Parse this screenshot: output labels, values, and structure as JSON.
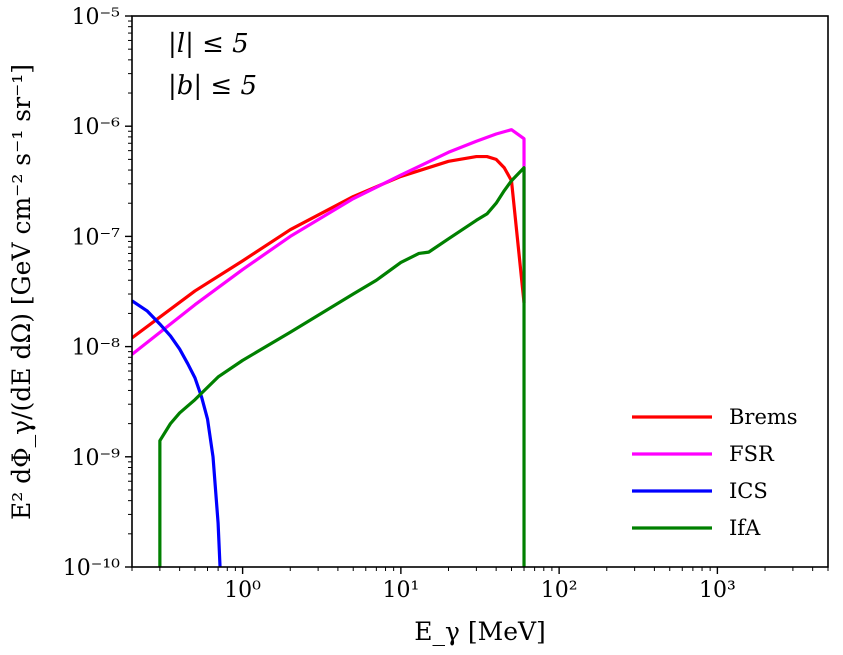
{
  "chart_data": {
    "type": "line",
    "xscale": "log",
    "yscale": "log",
    "xlim": [
      0.2,
      5000
    ],
    "ylim": [
      1e-10,
      1e-05
    ],
    "xlabel": "E_γ [MeV]",
    "ylabel": "E² dΦ_γ/(dE dΩ) [GeV cm⁻² s⁻¹ sr⁻¹]",
    "xticks": [
      {
        "value": 1,
        "label": "10⁰"
      },
      {
        "value": 10,
        "label": "10¹"
      },
      {
        "value": 100,
        "label": "10²"
      },
      {
        "value": 1000,
        "label": "10³"
      }
    ],
    "yticks": [
      {
        "value": 1e-10,
        "label": "10⁻¹⁰"
      },
      {
        "value": 1e-09,
        "label": "10⁻⁹"
      },
      {
        "value": 1e-08,
        "label": "10⁻⁸"
      },
      {
        "value": 1e-07,
        "label": "10⁻⁷"
      },
      {
        "value": 1e-06,
        "label": "10⁻⁶"
      },
      {
        "value": 1e-05,
        "label": "10⁻⁵"
      }
    ],
    "annotations": [
      "|l| ≤ 5",
      "|b| ≤ 5"
    ],
    "legend_position": "lower-right",
    "series": [
      {
        "name": "Brems",
        "color": "#ff0000",
        "points": [
          [
            0.2,
            1.2e-08
          ],
          [
            0.5,
            3.2e-08
          ],
          [
            1,
            6e-08
          ],
          [
            2,
            1.15e-07
          ],
          [
            5,
            2.3e-07
          ],
          [
            10,
            3.5e-07
          ],
          [
            20,
            4.8e-07
          ],
          [
            30,
            5.3e-07
          ],
          [
            35,
            5.3e-07
          ],
          [
            40,
            5e-07
          ],
          [
            45,
            4.2e-07
          ],
          [
            50,
            3.2e-07
          ],
          [
            60,
            2.5e-08
          ]
        ]
      },
      {
        "name": "FSR",
        "color": "#ff00ff",
        "points": [
          [
            0.2,
            8.5e-09
          ],
          [
            0.5,
            2.4e-08
          ],
          [
            1,
            5e-08
          ],
          [
            2,
            1e-07
          ],
          [
            5,
            2.2e-07
          ],
          [
            10,
            3.6e-07
          ],
          [
            20,
            5.8e-07
          ],
          [
            30,
            7.3e-07
          ],
          [
            40,
            8.5e-07
          ],
          [
            50,
            9.3e-07
          ],
          [
            60,
            7.7e-07
          ],
          [
            60,
            2.5e-08
          ]
        ]
      },
      {
        "name": "ICS",
        "color": "#0000ff",
        "points": [
          [
            0.2,
            2.6e-08
          ],
          [
            0.25,
            2.1e-08
          ],
          [
            0.3,
            1.6e-08
          ],
          [
            0.35,
            1.25e-08
          ],
          [
            0.4,
            9.5e-09
          ],
          [
            0.45,
            7e-09
          ],
          [
            0.5,
            5.2e-09
          ],
          [
            0.55,
            3.5e-09
          ],
          [
            0.6,
            2.2e-09
          ],
          [
            0.65,
            1e-09
          ],
          [
            0.7,
            2.5e-10
          ],
          [
            0.72,
            1e-10
          ]
        ]
      },
      {
        "name": "IfA",
        "color": "#008000",
        "points": [
          [
            0.3,
            1e-10
          ],
          [
            0.3,
            1.4e-09
          ],
          [
            0.35,
            2e-09
          ],
          [
            0.4,
            2.5e-09
          ],
          [
            0.5,
            3.3e-09
          ],
          [
            0.7,
            5.3e-09
          ],
          [
            1,
            7.5e-09
          ],
          [
            2,
            1.35e-08
          ],
          [
            5,
            3e-08
          ],
          [
            7,
            4e-08
          ],
          [
            10,
            5.8e-08
          ],
          [
            13,
            7e-08
          ],
          [
            15,
            7.2e-08
          ],
          [
            20,
            9.5e-08
          ],
          [
            30,
            1.4e-07
          ],
          [
            35,
            1.6e-07
          ],
          [
            40,
            2e-07
          ],
          [
            45,
            2.6e-07
          ],
          [
            50,
            3.2e-07
          ],
          [
            60,
            4.2e-07
          ],
          [
            60,
            1e-10
          ]
        ]
      }
    ]
  }
}
